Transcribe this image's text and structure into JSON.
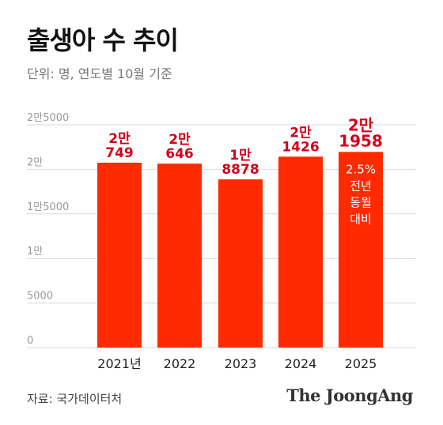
{
  "header": {
    "title": "출생아 수 추이",
    "unit_note": "단위: 명, 연도별 10월 기준"
  },
  "footer": {
    "source": "자료: 국가데이터처",
    "brand": "The JoongAng"
  },
  "colors": {
    "bar": "#ff2a00",
    "highlight_label": "#d4001c",
    "gridline": "#d9d9d9",
    "tick_label": "#999999",
    "inner_label": "#ffffff"
  },
  "chart_data": {
    "type": "bar",
    "title": "출생아 수 추이",
    "subtitle": "단위: 명, 연도별 10월 기준",
    "categories": [
      "2021년",
      "2022",
      "2023",
      "2024",
      "2025"
    ],
    "values": [
      20749,
      20646,
      18878,
      21426,
      21958
    ],
    "value_labels": [
      [
        "2만",
        "749"
      ],
      [
        "2만",
        "646"
      ],
      [
        "1만",
        "8878"
      ],
      [
        "2만",
        "1426"
      ],
      [
        "2만",
        "1958"
      ]
    ],
    "ylim": [
      0,
      25000
    ],
    "yticks": [
      0,
      5000,
      10000,
      15000,
      20000,
      25000
    ],
    "ytick_labels": [
      "0",
      "5000",
      "1만",
      "1만5000",
      "2만",
      "2만5000"
    ],
    "grid": true,
    "annotation": {
      "bar_index": 4,
      "lines": [
        "2.5%",
        "전년",
        "동월",
        "대비"
      ]
    }
  }
}
